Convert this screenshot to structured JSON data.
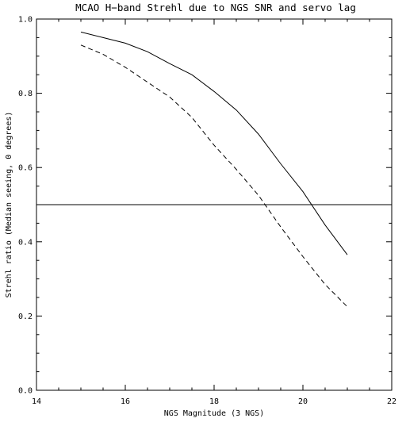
{
  "chart_data": {
    "type": "line",
    "title": "MCAO H−band Strehl due to NGS SNR and servo lag",
    "xlabel": "NGS Magnitude (3 NGS)",
    "ylabel": "Strehl ratio (Median seeing, 0 degrees)",
    "xlim": [
      14,
      22
    ],
    "ylim": [
      0.0,
      1.0
    ],
    "x_ticks": [
      "14",
      "16",
      "18",
      "20",
      "22"
    ],
    "y_ticks": [
      "0.0",
      "0.2",
      "0.4",
      "0.6",
      "0.8",
      "1.0"
    ],
    "grid": false,
    "reference_line": {
      "y": 0.5
    },
    "series": [
      {
        "style": "solid",
        "x": [
          15.0,
          15.5,
          16.0,
          16.5,
          17.0,
          17.5,
          18.0,
          18.5,
          19.0,
          19.5,
          20.0,
          20.5,
          21.0
        ],
        "y": [
          0.965,
          0.95,
          0.935,
          0.912,
          0.88,
          0.85,
          0.805,
          0.755,
          0.69,
          0.61,
          0.535,
          0.445,
          0.365
        ]
      },
      {
        "style": "dashed",
        "x": [
          15.0,
          15.5,
          16.0,
          16.5,
          17.0,
          17.5,
          18.0,
          18.5,
          19.0,
          19.5,
          20.0,
          20.5,
          21.0
        ],
        "y": [
          0.93,
          0.905,
          0.87,
          0.83,
          0.79,
          0.735,
          0.66,
          0.595,
          0.525,
          0.44,
          0.36,
          0.285,
          0.225
        ]
      }
    ]
  }
}
